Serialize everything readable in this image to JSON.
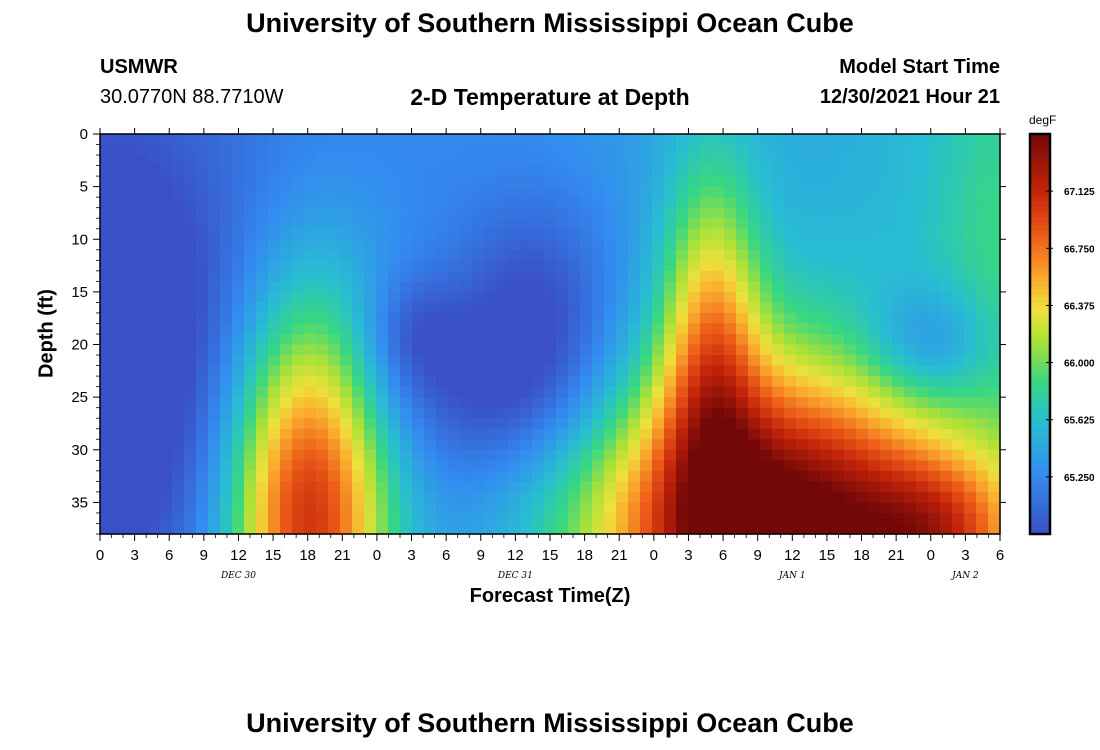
{
  "header": {
    "title": "University of Southern Mississippi Ocean Cube",
    "station": "USMWR",
    "coords": "30.0770N  88.7710W",
    "model_start_label": "Model Start Time",
    "model_start_value": "12/30/2021 Hour 21"
  },
  "footer": {
    "title": "University of Southern Mississippi Ocean Cube"
  },
  "chart_data": {
    "type": "heatmap",
    "title": "2-D Temperature at Depth",
    "xlabel": "Forecast Time(Z)",
    "ylabel": "Depth (ft)",
    "x_range_hours": [
      0,
      78
    ],
    "y_range_ft": [
      0,
      38
    ],
    "y_ticks": [
      0,
      5,
      10,
      15,
      20,
      25,
      30,
      35
    ],
    "x_tick_labels": [
      "0",
      "3",
      "6",
      "9",
      "12",
      "15",
      "18",
      "21",
      "0",
      "3",
      "6",
      "9",
      "12",
      "15",
      "18",
      "21",
      "0",
      "3",
      "6",
      "9",
      "12",
      "15",
      "18",
      "21",
      "0",
      "3",
      "6"
    ],
    "date_labels": [
      {
        "text": "DEC 30",
        "hour": 12
      },
      {
        "text": "DEC 31",
        "hour": 36
      },
      {
        "text": "JAN 1",
        "hour": 60
      },
      {
        "text": "JAN 2",
        "hour": 75
      }
    ],
    "colorbar": {
      "unit": "degF",
      "min": 64.875,
      "max": 67.5,
      "ticks": [
        "67.125",
        "66.750",
        "66.375",
        "66.000",
        "65.625",
        "65.250"
      ],
      "tick_values": [
        67.125,
        66.75,
        66.375,
        66.0,
        65.625,
        65.25
      ]
    },
    "features": [
      {
        "kind": "cold",
        "x": 1,
        "y": 16,
        "sx": 2.5,
        "sy": 6,
        "amp": -0.75
      },
      {
        "kind": "cold",
        "x": 3,
        "y": 22,
        "sx": 8,
        "sy": 14,
        "amp": -0.45
      },
      {
        "kind": "cold",
        "x": 27,
        "y": 19,
        "sx": 3,
        "sy": 4,
        "amp": -0.3
      },
      {
        "kind": "cold",
        "x": 38,
        "y": 17,
        "sx": 5,
        "sy": 8,
        "amp": -0.45
      },
      {
        "kind": "cold",
        "x": 33,
        "y": 25,
        "sx": 8,
        "sy": 6,
        "amp": -0.35
      },
      {
        "kind": "cold",
        "x": 72,
        "y": 20,
        "sx": 4,
        "sy": 4,
        "amp": -0.45
      },
      {
        "kind": "warm",
        "x": 18,
        "y": 36,
        "sx": 5,
        "sy": 14,
        "amp": 1.9
      },
      {
        "kind": "warm",
        "x": 58,
        "y": 38,
        "sx": 11,
        "sy": 11,
        "amp": 2.3
      },
      {
        "kind": "warm",
        "x": 53,
        "y": 20,
        "sx": 3,
        "sy": 12,
        "amp": 1.0
      },
      {
        "kind": "warm",
        "x": 73,
        "y": 38,
        "sx": 5,
        "sy": 5,
        "amp": 0.8
      },
      {
        "kind": "warm",
        "x": 78,
        "y": 10,
        "sx": 4,
        "sy": 14,
        "amp": 0.25
      }
    ],
    "base_surface_east": 65.6,
    "base_surface_west": 65.05
  }
}
